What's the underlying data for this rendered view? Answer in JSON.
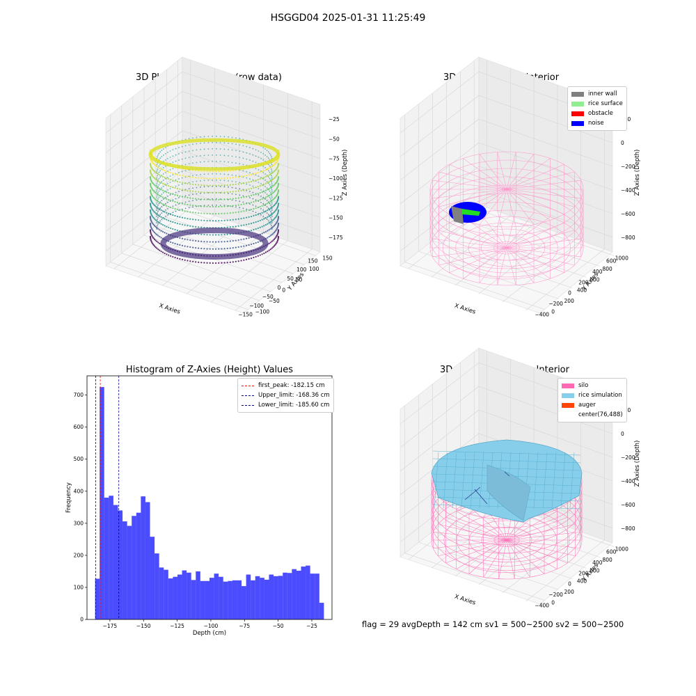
{
  "suptitle": "HSGGD04 2025-01-31 11:25:49",
  "footer": "flag = 29  avgDepth = 142 cm  sv1 = 500~2500  sv2 = 500~2500",
  "chart_data": [
    {
      "type": "scatter",
      "subtype": "3d",
      "title": "3D Plot of Silo Interior(row data)",
      "xlabel": "X Axies",
      "ylabel": "Y Axies",
      "zlabel": "Z Axies (Depth)",
      "x_ticks": [
        "−150",
        "−100",
        "−50",
        "0",
        "50",
        "100",
        "150"
      ],
      "y_ticks": [
        "−100",
        "−50",
        "0",
        "50",
        "100",
        "150"
      ],
      "z_ticks": [
        "−25",
        "−50",
        "−75",
        "−100",
        "−125",
        "−150",
        "−175"
      ],
      "colormap": "viridis"
    },
    {
      "type": "scatter",
      "subtype": "3d",
      "title": "3D classify of Silo Interior",
      "xlabel": "X Axies",
      "ylabel": "Y Axies",
      "zlabel": "Z Axies (Depth)",
      "x_ticks": [
        "−400",
        "−200",
        "0",
        "200",
        "400",
        "600"
      ],
      "y_ticks": [
        "0",
        "200",
        "400",
        "600",
        "800",
        "1000"
      ],
      "z_ticks": [
        "200",
        "0",
        "−200",
        "−400",
        "−600",
        "−800"
      ],
      "legend": [
        {
          "label": "inner wall",
          "color": "#808080"
        },
        {
          "label": "rice surface",
          "color": "#90ee90"
        },
        {
          "label": "obstacle",
          "color": "#ff0000"
        },
        {
          "label": "noise",
          "color": "#0000ff"
        }
      ],
      "legend_position": "top-right"
    },
    {
      "type": "bar",
      "subtype": "histogram",
      "title": "Histogram of Z-Axies (Height) Values",
      "xlabel": "Depth (cm)",
      "ylabel": "Frequency",
      "xlim": [
        -192,
        -10
      ],
      "ylim": [
        0,
        760
      ],
      "x_ticks": [
        -175,
        -150,
        -125,
        -100,
        -75,
        -50,
        -25
      ],
      "x_tick_labels": [
        "−175",
        "−150",
        "−125",
        "−100",
        "−75",
        "−50",
        "−25"
      ],
      "y_ticks": [
        0,
        100,
        200,
        300,
        400,
        500,
        600,
        700
      ],
      "bin_start": -186.0,
      "bin_width": 3.4,
      "values": [
        127,
        725,
        380,
        386,
        357,
        340,
        306,
        292,
        323,
        333,
        384,
        366,
        258,
        206,
        162,
        155,
        128,
        133,
        140,
        153,
        146,
        123,
        150,
        120,
        120,
        130,
        143,
        133,
        118,
        120,
        122,
        122,
        104,
        140,
        122,
        135,
        130,
        124,
        140,
        135,
        136,
        146,
        145,
        157,
        152,
        165,
        168,
        143,
        143,
        52
      ],
      "color": "#0000ff",
      "vlines": [
        {
          "label": "first_peak: -182.15 cm",
          "x": -182.15,
          "color": "#ff0000"
        },
        {
          "label": "Upper_limit: -168.36 cm",
          "x": -168.36,
          "color": "#00008b"
        },
        {
          "label": "Lower_limit: -185.60 cm",
          "x": -185.6,
          "color": "#00008b"
        }
      ],
      "legend_position": "top-right"
    },
    {
      "type": "scatter",
      "subtype": "3d-surface",
      "title": "3D simulation of Silo Interior",
      "xlabel": "X Axies",
      "ylabel": "Y Axies",
      "zlabel": "Z Axies (Depth)",
      "x_ticks": [
        "−400",
        "−200",
        "0",
        "200",
        "400",
        "600"
      ],
      "y_ticks": [
        "0",
        "200",
        "400",
        "600",
        "800",
        "1000"
      ],
      "z_ticks": [
        "200",
        "0",
        "−200",
        "−400",
        "−600",
        "−800"
      ],
      "legend": [
        {
          "label": "silo",
          "color": "#ff69b4"
        },
        {
          "label": "rice simulation",
          "color": "#87ceeb"
        },
        {
          "label": "auger",
          "color": "#ff4500"
        },
        {
          "label": "center(76,488)",
          "color": "#ffffff"
        }
      ],
      "legend_position": "top-right"
    }
  ]
}
